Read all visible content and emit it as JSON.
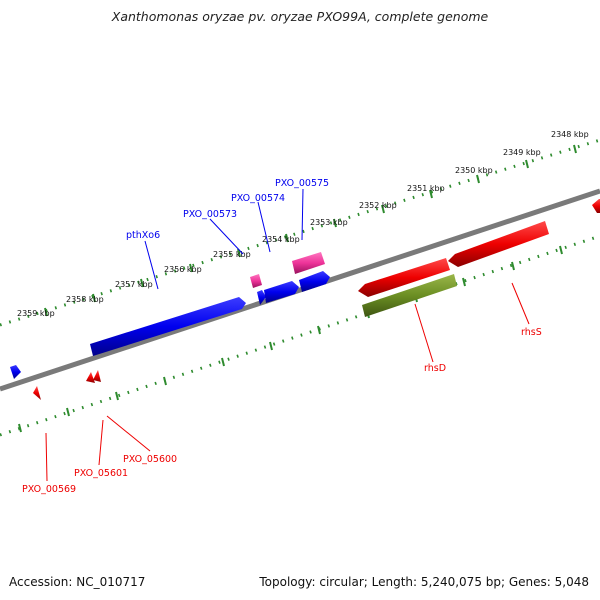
{
  "title": "Xanthomonas oryzae pv. oryzae PXO99A, complete genome",
  "footer": {
    "accession": "Accession: NC_010717",
    "summary": "Topology: circular; Length: 5,240,075 bp; Genes: 5,048"
  },
  "colors": {
    "backbone": "#7a7a7a",
    "ruler": "#2e8b2e",
    "strand_plus": "#0000ee",
    "strand_minus": "#ee0000",
    "pseudo": "#ee3399",
    "rna": "#6b8e23"
  },
  "kbp_labels": [
    "2348 kbp",
    "2349 kbp",
    "2350 kbp",
    "2351 kbp",
    "2352 kbp",
    "2353 kbp",
    "2354 kbp",
    "2355 kbp",
    "2356 kbp",
    "2357 kbp",
    "2358 kbp",
    "2359 kbp"
  ],
  "gene_labels": {
    "pthXo6": "pthXo6",
    "PXO_00573": "PXO_00573",
    "PXO_00574": "PXO_00574",
    "PXO_00575": "PXO_00575",
    "rhsD": "rhsD",
    "rhsS": "rhsS",
    "PXO_00569": "PXO_00569",
    "PXO_05601": "PXO_05601",
    "PXO_05600": "PXO_05600"
  }
}
